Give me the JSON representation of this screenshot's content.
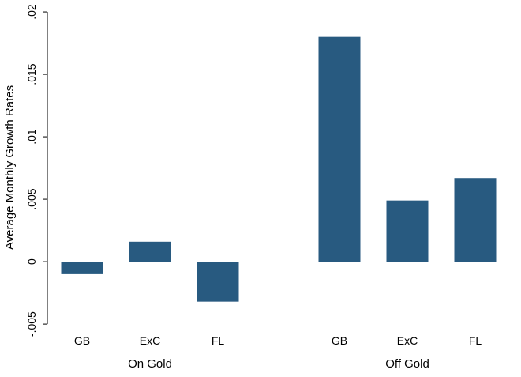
{
  "chart_data": {
    "type": "bar",
    "title": "",
    "ylabel": "Average Monthly Growth Rates",
    "xlabel": "",
    "ylim": [
      -0.0055,
      0.0207
    ],
    "yticks": [
      {
        "value": -0.005,
        "label": "-.005"
      },
      {
        "value": 0,
        "label": "0"
      },
      {
        "value": 0.005,
        "label": ".005"
      },
      {
        "value": 0.01,
        "label": ".01"
      },
      {
        "value": 0.015,
        "label": ".015"
      },
      {
        "value": 0.02,
        "label": ".02"
      }
    ],
    "groups": [
      {
        "label": "On Gold",
        "categories": [
          "GB",
          "ExC",
          "FL"
        ],
        "values": [
          -0.001,
          0.0016,
          -0.0032
        ]
      },
      {
        "label": "Off Gold",
        "categories": [
          "GB",
          "ExC",
          "FL"
        ],
        "values": [
          0.018,
          0.0049,
          0.0067
        ]
      }
    ],
    "bar_color": "#285a80",
    "grid": false,
    "legend": "none"
  }
}
